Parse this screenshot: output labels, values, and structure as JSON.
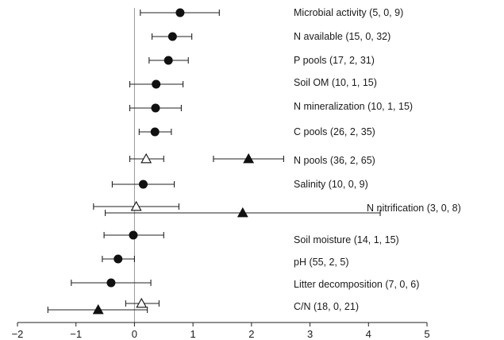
{
  "chart_data": {
    "type": "scatter",
    "subtype": "forest-plot",
    "title": "",
    "xlabel": "",
    "ylabel": "",
    "xlim": [
      -2,
      5
    ],
    "xticks": [
      -2,
      -1,
      0,
      1,
      2,
      3,
      4,
      5
    ],
    "xtick_labels": [
      "−2",
      "−1",
      "0",
      "1",
      "2",
      "3",
      "4",
      "5"
    ],
    "grid": false,
    "reference_line_x": 0,
    "categories": [
      {
        "label": "Microbial activity (5, 0, 9)",
        "points": [
          {
            "marker": "circle-filled",
            "value": 0.78,
            "low": 0.1,
            "high": 1.45
          }
        ]
      },
      {
        "label": "N available (15, 0, 32)",
        "points": [
          {
            "marker": "circle-filled",
            "value": 0.65,
            "low": 0.3,
            "high": 0.98
          }
        ]
      },
      {
        "label": "P pools (17, 2, 31)",
        "points": [
          {
            "marker": "circle-filled",
            "value": 0.58,
            "low": 0.25,
            "high": 0.92
          }
        ]
      },
      {
        "label": "Soil OM (10, 1, 15)",
        "points": [
          {
            "marker": "circle-filled",
            "value": 0.37,
            "low": -0.08,
            "high": 0.83
          }
        ]
      },
      {
        "label": "N mineralization (10, 1, 15)",
        "points": [
          {
            "marker": "circle-filled",
            "value": 0.36,
            "low": -0.08,
            "high": 0.8
          }
        ]
      },
      {
        "label": "C pools (26, 2, 35)",
        "points": [
          {
            "marker": "circle-filled",
            "value": 0.35,
            "low": 0.08,
            "high": 0.63
          }
        ]
      },
      {
        "label": "N pools (36, 2, 65)",
        "points": [
          {
            "marker": "triangle-open",
            "value": 0.2,
            "low": -0.08,
            "high": 0.5
          },
          {
            "marker": "triangle-filled",
            "value": 1.95,
            "low": 1.35,
            "high": 2.55
          }
        ]
      },
      {
        "label": "Salinity (10, 0, 9)",
        "points": [
          {
            "marker": "circle-filled",
            "value": 0.15,
            "low": -0.38,
            "high": 0.68
          }
        ]
      },
      {
        "label": "N nitrification (3, 0, 8)",
        "points": [
          {
            "marker": "triangle-open",
            "value": 0.03,
            "low": -0.7,
            "high": 0.76
          },
          {
            "marker": "triangle-filled",
            "value": 1.85,
            "low": -0.5,
            "high": 4.2
          }
        ]
      },
      {
        "label": "Soil moisture (14, 1, 15)",
        "points": [
          {
            "marker": "circle-filled",
            "value": -0.02,
            "low": -0.52,
            "high": 0.5
          }
        ]
      },
      {
        "label": "pH (55, 2, 5)",
        "points": [
          {
            "marker": "circle-filled",
            "value": -0.28,
            "low": -0.55,
            "high": 0.0
          }
        ]
      },
      {
        "label": "Litter decomposition (7, 0, 6)",
        "points": [
          {
            "marker": "circle-filled",
            "value": -0.4,
            "low": -1.08,
            "high": 0.28
          }
        ]
      },
      {
        "label": "C/N (18, 0, 21)",
        "points": [
          {
            "marker": "triangle-open",
            "value": 0.12,
            "low": -0.15,
            "high": 0.42
          },
          {
            "marker": "triangle-filled",
            "value": -0.62,
            "low": -1.48,
            "high": 0.22
          }
        ]
      }
    ]
  }
}
